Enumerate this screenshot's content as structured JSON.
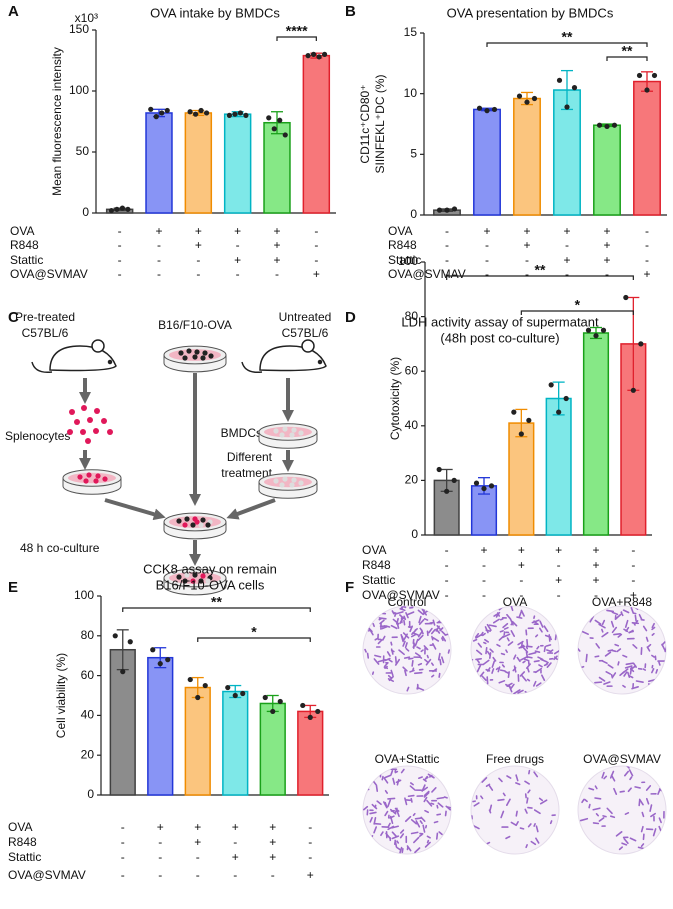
{
  "panel_labels": [
    "A",
    "B",
    "C",
    "D",
    "E",
    "F"
  ],
  "chart_data": [
    {
      "type": "bar",
      "title": "OVA intake by BMDCs",
      "ylabel": [
        "Mean fluorescence intensity"
      ],
      "y_multiplier": "x10³",
      "values": [
        3,
        82,
        82,
        81,
        74,
        129
      ],
      "errors": [
        1,
        3,
        2,
        2,
        9,
        2
      ],
      "points": [
        [
          2,
          3,
          4,
          3
        ],
        [
          85,
          79,
          82,
          84
        ],
        [
          83,
          81,
          84,
          82
        ],
        [
          80,
          81,
          82,
          80
        ],
        [
          78,
          69,
          76,
          64
        ],
        [
          129,
          130,
          128,
          130
        ]
      ],
      "ylim": [
        0,
        150
      ],
      "yticks": [
        0,
        50,
        100,
        150
      ],
      "colors": [
        "#8c8c8c",
        "#8894f5",
        "#fbc57e",
        "#7ee8e8",
        "#86e886",
        "#f7777a"
      ],
      "edge_colors": [
        "#404040",
        "#2236d8",
        "#f08c00",
        "#00b4c4",
        "#1aa01a",
        "#e0202c"
      ],
      "significance": [
        "****"
      ],
      "conditions": [
        {
          "name": "OVA",
          "signs": [
            "-",
            "+",
            "+",
            "+",
            "+",
            "-"
          ]
        },
        {
          "name": "R848",
          "signs": [
            "-",
            "-",
            "+",
            "-",
            "+",
            "-"
          ]
        },
        {
          "name": "Stattic",
          "signs": [
            "-",
            "-",
            "-",
            "+",
            "+",
            "-"
          ]
        },
        {
          "name": "OVA@SVMAV",
          "signs": [
            "-",
            "-",
            "-",
            "-",
            "-",
            "+"
          ]
        }
      ]
    },
    {
      "type": "bar",
      "title": "OVA presentation by BMDCs",
      "ylabel": [
        "CD11c⁺CD80⁺",
        "SIINFEKL⁺DC (%)"
      ],
      "values": [
        0.4,
        8.7,
        9.6,
        10.3,
        7.4,
        11.0
      ],
      "errors": [
        0.1,
        0.1,
        0.5,
        1.6,
        0.1,
        0.8
      ],
      "points": [
        [
          0.4,
          0.4,
          0.5
        ],
        [
          8.8,
          8.6,
          8.7
        ],
        [
          9.8,
          9.3,
          9.6
        ],
        [
          11.1,
          8.9,
          10.5
        ],
        [
          7.4,
          7.3,
          7.4
        ],
        [
          11.5,
          10.3,
          11.5
        ]
      ],
      "ylim": [
        0,
        15
      ],
      "yticks": [
        0,
        5,
        10,
        15
      ],
      "colors": [
        "#8c8c8c",
        "#8894f5",
        "#fbc57e",
        "#7ee8e8",
        "#86e886",
        "#f7777a"
      ],
      "edge_colors": [
        "#404040",
        "#2236d8",
        "#f08c00",
        "#00b4c4",
        "#1aa01a",
        "#e0202c"
      ],
      "significance": [
        "**",
        "**"
      ],
      "conditions": [
        {
          "name": "OVA",
          "signs": [
            "-",
            "+",
            "+",
            "+",
            "+",
            "-"
          ]
        },
        {
          "name": "R848",
          "signs": [
            "-",
            "-",
            "+",
            "-",
            "+",
            "-"
          ]
        },
        {
          "name": "Stattic",
          "signs": [
            "-",
            "-",
            "-",
            "+",
            "+",
            "-"
          ]
        },
        {
          "name": "OVA@SVMAV",
          "signs": [
            "-",
            "-",
            "-",
            "-",
            "-",
            "+"
          ]
        }
      ]
    },
    {
      "type": "bar",
      "title": [
        "LDH activity assay of supermatant",
        "(48h post co-culture)"
      ],
      "ylabel": [
        "Cytotoxicity (%)"
      ],
      "values": [
        20,
        18,
        41,
        50,
        74,
        70
      ],
      "errors": [
        4,
        3,
        5,
        6,
        2,
        17
      ],
      "points": [
        [
          24,
          16,
          20
        ],
        [
          19,
          17,
          18
        ],
        [
          45,
          37,
          42
        ],
        [
          55,
          45,
          50
        ],
        [
          75,
          73,
          75
        ],
        [
          87,
          53,
          70
        ]
      ],
      "ylim": [
        0,
        100
      ],
      "yticks": [
        0,
        20,
        40,
        60,
        80,
        100
      ],
      "colors": [
        "#8c8c8c",
        "#8894f5",
        "#fbc57e",
        "#7ee8e8",
        "#86e886",
        "#f7777a"
      ],
      "edge_colors": [
        "#404040",
        "#2236d8",
        "#f08c00",
        "#00b4c4",
        "#1aa01a",
        "#e0202c"
      ],
      "significance": [
        "**",
        "*"
      ],
      "conditions": [
        {
          "name": "OVA",
          "signs": [
            "-",
            "+",
            "+",
            "+",
            "+",
            "-"
          ]
        },
        {
          "name": "R848",
          "signs": [
            "-",
            "-",
            "+",
            "-",
            "+",
            "-"
          ]
        },
        {
          "name": "Stattic",
          "signs": [
            "-",
            "-",
            "-",
            "+",
            "+",
            "-"
          ]
        },
        {
          "name": "OVA@SVMAV",
          "signs": [
            "-",
            "-",
            "-",
            "-",
            "-",
            "+"
          ]
        }
      ]
    },
    {
      "type": "bar",
      "title": [
        "CCK8 assay on remain",
        "B16/F10-OVA cells"
      ],
      "ylabel": [
        "Cell viability (%)"
      ],
      "values": [
        73,
        69,
        54,
        52,
        46,
        42
      ],
      "errors": [
        10,
        5,
        5,
        3,
        4,
        3
      ],
      "points": [
        [
          80,
          62,
          77
        ],
        [
          73,
          66,
          68
        ],
        [
          58,
          49,
          55
        ],
        [
          54,
          50,
          51
        ],
        [
          49,
          42,
          47
        ],
        [
          45,
          39,
          42
        ]
      ],
      "ylim": [
        0,
        100
      ],
      "yticks": [
        0,
        20,
        40,
        60,
        80,
        100
      ],
      "colors": [
        "#8c8c8c",
        "#8894f5",
        "#fbc57e",
        "#7ee8e8",
        "#86e886",
        "#f7777a"
      ],
      "edge_colors": [
        "#404040",
        "#2236d8",
        "#f08c00",
        "#00b4c4",
        "#1aa01a",
        "#e0202c"
      ],
      "significance": [
        "**",
        "*"
      ],
      "conditions": [
        {
          "name": "OVA",
          "signs": [
            "-",
            "+",
            "+",
            "+",
            "+",
            "-"
          ]
        },
        {
          "name": "R848",
          "signs": [
            "-",
            "-",
            "+",
            "-",
            "+",
            "-"
          ]
        },
        {
          "name": "Stattic",
          "signs": [
            "-",
            "-",
            "-",
            "+",
            "+",
            "-"
          ]
        },
        {
          "name": "OVA@SVMAV",
          "signs": [
            "-",
            "-",
            "-",
            "-",
            "-",
            "+"
          ]
        }
      ]
    }
  ],
  "diagram": {
    "labels": [
      "Pre-treated",
      "C57BL/6",
      "B16/F10-OVA",
      "Untreated",
      "C57BL/6",
      "Splenocytes",
      "BMDCs",
      "Different",
      "treatment",
      "48 h co-culture"
    ]
  },
  "images": {
    "labels": [
      "Control",
      "OVA",
      "OVA+R848",
      "OVA+Stattic",
      "Free drugs",
      "OVA@SVMAV"
    ]
  }
}
